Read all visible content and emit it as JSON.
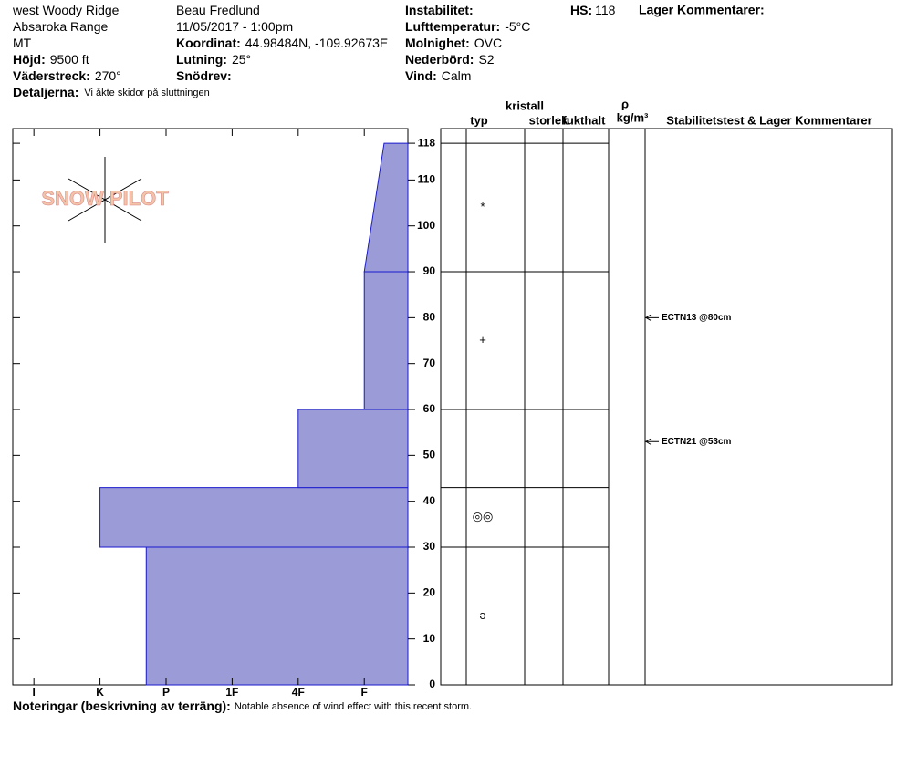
{
  "header": {
    "columns": [
      [
        {
          "value": "west Woody Ridge"
        },
        {
          "value": "Absaroka Range"
        },
        {
          "value": "MT"
        },
        {
          "label": "Höjd:",
          "value": "9500 ft"
        },
        {
          "label": "Väderstreck:",
          "value": "270°"
        }
      ],
      [
        {
          "value": "Beau  Fredlund"
        },
        {
          "value": "11/05/2017 - 1:00pm"
        },
        {
          "label": "Koordinat:",
          "value": "44.98484N, -109.92673E"
        },
        {
          "label": "Lutning:",
          "value": "25°"
        },
        {
          "label": "Snödrev:"
        }
      ],
      [
        {
          "label": "Instabilitet:"
        },
        {
          "label": "Lufttemperatur:",
          "value": "-5°C"
        },
        {
          "label": "Molnighet:",
          "value": "OVC"
        },
        {
          "label": "Nederbörd:",
          "value": "S2"
        },
        {
          "label": "Vind:",
          "value": "Calm"
        }
      ]
    ],
    "hs": {
      "label": "HS:",
      "value": "118"
    },
    "layer_comments": "Lager Kommentarer:",
    "details": {
      "label": "Detaljerna:",
      "value": "Vi åkte skidor på sluttningen"
    }
  },
  "logo": "SNOW PILOT",
  "columns": {
    "crystal": "kristall",
    "type": "typ",
    "size": "storlek",
    "moisture": "fukthalt",
    "rho": "ρ",
    "density": "kg/m³",
    "stability": "Stabilitetstest & Lager Kommentarer"
  },
  "chart_data": {
    "type": "snow-profile",
    "ylim": [
      0,
      121.2
    ],
    "yticks": [
      0,
      10,
      20,
      30,
      40,
      50,
      60,
      70,
      80,
      90,
      100,
      110,
      118
    ],
    "xlim": [
      6.32,
      0.34
    ],
    "xticks": [
      {
        "value": 6,
        "label": "I"
      },
      {
        "value": 5,
        "label": "K"
      },
      {
        "value": 4,
        "label": "P"
      },
      {
        "value": 3,
        "label": "1F"
      },
      {
        "value": 2,
        "label": "4F"
      },
      {
        "value": 1,
        "label": "F"
      }
    ],
    "color": "#9b9bd8",
    "layers": [
      {
        "bottom": 0,
        "top": 30,
        "hardness_bottom": 4.3,
        "hardness_top": 4.3,
        "grain": "ə"
      },
      {
        "bottom": 30,
        "top": 43,
        "hardness_bottom": 5,
        "hardness_top": 5,
        "grain": "◎◎"
      },
      {
        "bottom": 43,
        "top": 60,
        "hardness_bottom": 2,
        "hardness_top": 2
      },
      {
        "bottom": 60,
        "top": 90,
        "hardness_bottom": 1,
        "hardness_top": 1,
        "grain": "+"
      },
      {
        "bottom": 90,
        "top": 118,
        "hardness_bottom": 1,
        "hardness_top": 0.7,
        "grain": "*"
      }
    ],
    "tests": [
      {
        "label": "ECTN13 @80cm",
        "depth": 80
      },
      {
        "label": "ECTN21 @53cm",
        "depth": 53
      }
    ],
    "notes": {
      "label": "Noteringar (beskrivning av terräng):",
      "value": "Notable absence of wind effect with this recent storm."
    }
  }
}
